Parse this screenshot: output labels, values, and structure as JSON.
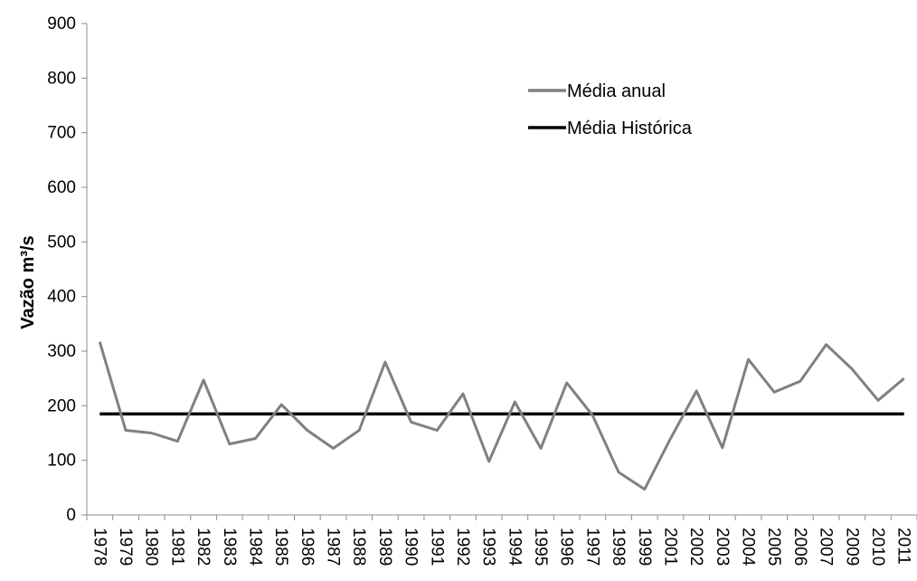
{
  "chart_data": {
    "type": "line",
    "title": "",
    "xlabel": "",
    "ylabel": "Vazão m³/s",
    "ylim": [
      0,
      900
    ],
    "ytick_step": 100,
    "grid": false,
    "legend_placement": "top-right",
    "categories": [
      "1978",
      "1979",
      "1980",
      "1981",
      "1982",
      "1983",
      "1984",
      "1985",
      "1986",
      "1987",
      "1988",
      "1989",
      "1990",
      "1991",
      "1992",
      "1993",
      "1994",
      "1995",
      "1996",
      "1997",
      "1998",
      "1999",
      "2001",
      "2002",
      "2003",
      "2004",
      "2005",
      "2006",
      "2007",
      "2009",
      "2010",
      "2011"
    ],
    "series": [
      {
        "name": "Média anual",
        "color": "#808080",
        "values": [
          317,
          155,
          150,
          135,
          247,
          130,
          140,
          202,
          155,
          122,
          155,
          280,
          170,
          155,
          222,
          98,
          207,
          122,
          242,
          182,
          78,
          47,
          140,
          227,
          123,
          285,
          225,
          245,
          312,
          267,
          210,
          250
        ]
      },
      {
        "name": "Média Histórica",
        "color": "#000000",
        "values": [
          185,
          185,
          185,
          185,
          185,
          185,
          185,
          185,
          185,
          185,
          185,
          185,
          185,
          185,
          185,
          185,
          185,
          185,
          185,
          185,
          185,
          185,
          185,
          185,
          185,
          185,
          185,
          185,
          185,
          185,
          185,
          185
        ]
      }
    ]
  }
}
